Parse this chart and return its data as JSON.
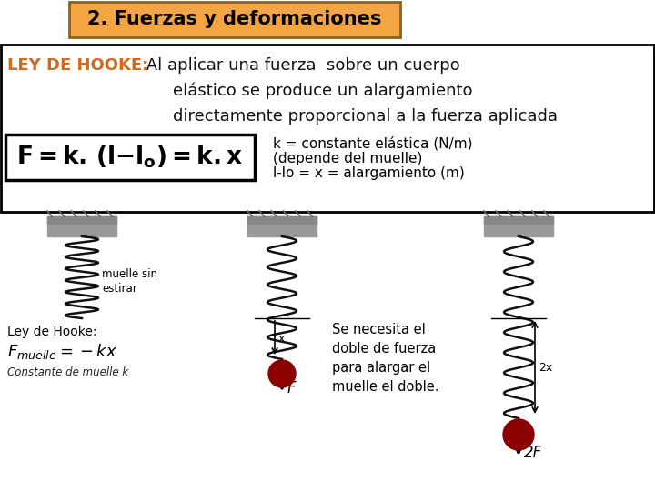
{
  "title": "2. Fuerzas y deformaciones",
  "title_bg": "#F4A442",
  "title_border": "#8B6020",
  "title_fontsize": 15,
  "hooke_label": "LEY DE HOOKE:",
  "hooke_label_color": "#D2691E",
  "hooke_text_line1": " Al aplicar una fuerza  sobre un cuerpo",
  "hooke_text_line2": "elástico se produce un alargamiento",
  "hooke_text_line3": "directamente proporcional a la fuerza aplicada",
  "formula_latex": "$\\mathbf{F = k.\\, (l{-}l_o) = k.x}$",
  "formula_fontsize": 19,
  "formula_box_color": "#000000",
  "k_desc_line1": "k = constante elástica (N/m)",
  "k_desc_line2": "(depende del muelle)",
  "k_desc_line3": "l-lo = x = alargamiento (m)",
  "background": "#ffffff",
  "border_color": "#000000",
  "text_color": "#000000",
  "hooke_text_color": "#111111",
  "spring_color": "#111111",
  "ball_color": "#8B0000",
  "ceiling_color": "#999999"
}
